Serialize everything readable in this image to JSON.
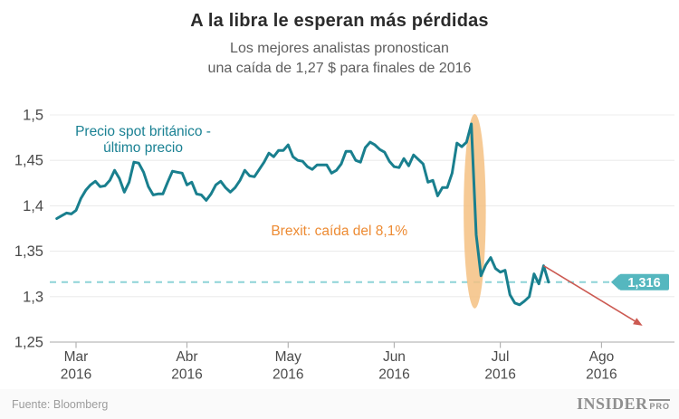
{
  "header": {
    "title": "A la libra le esperan más pérdidas",
    "subtitle_line1": "Los mejores analistas pronostican",
    "subtitle_line2": "una caída de 1,27 $ para finales de 2016"
  },
  "chart_data": {
    "type": "line",
    "title": "A la libra le esperan más pérdidas",
    "series": [
      {
        "name": "Precio spot británico - último precio (GBP/USD)",
        "values": [
          1.386,
          1.389,
          1.392,
          1.391,
          1.395,
          1.408,
          1.417,
          1.423,
          1.427,
          1.421,
          1.422,
          1.428,
          1.439,
          1.43,
          1.415,
          1.426,
          1.448,
          1.447,
          1.437,
          1.421,
          1.412,
          1.413,
          1.413,
          1.426,
          1.438,
          1.437,
          1.436,
          1.423,
          1.426,
          1.413,
          1.412,
          1.406,
          1.413,
          1.423,
          1.427,
          1.42,
          1.415,
          1.42,
          1.428,
          1.439,
          1.433,
          1.432,
          1.44,
          1.448,
          1.458,
          1.454,
          1.461,
          1.461,
          1.467,
          1.454,
          1.45,
          1.449,
          1.443,
          1.44,
          1.445,
          1.445,
          1.445,
          1.436,
          1.439,
          1.446,
          1.46,
          1.46,
          1.45,
          1.448,
          1.464,
          1.47,
          1.467,
          1.462,
          1.459,
          1.449,
          1.443,
          1.442,
          1.452,
          1.444,
          1.456,
          1.451,
          1.446,
          1.426,
          1.428,
          1.411,
          1.42,
          1.42,
          1.436,
          1.469,
          1.465,
          1.47,
          1.49,
          1.368,
          1.323,
          1.335,
          1.343,
          1.331,
          1.327,
          1.329,
          1.302,
          1.293,
          1.291,
          1.295,
          1.3,
          1.325,
          1.314,
          1.334,
          1.316
        ]
      }
    ],
    "x_axis": {
      "ticks": [
        {
          "month": "Mar",
          "year": "2016",
          "index": 4
        },
        {
          "month": "Abr",
          "year": "2016",
          "index": 27
        },
        {
          "month": "May",
          "year": "2016",
          "index": 48
        },
        {
          "month": "Jun",
          "year": "2016",
          "index": 70
        },
        {
          "month": "Jul",
          "year": "2016",
          "index": 92
        },
        {
          "month": "Ago",
          "year": "2016",
          "index": 113
        }
      ],
      "domain_indices": [
        0,
        128
      ]
    },
    "y_axis": {
      "ticks": [
        {
          "label": "1,5",
          "value": 1.5
        },
        {
          "label": "1,45",
          "value": 1.45
        },
        {
          "label": "1,4",
          "value": 1.4
        },
        {
          "label": "1,35",
          "value": 1.35
        },
        {
          "label": "1,3",
          "value": 1.3
        },
        {
          "label": "1,25",
          "value": 1.25
        }
      ],
      "range": [
        1.25,
        1.5
      ]
    },
    "grid": true,
    "line_color": "#197f8e",
    "annotations": {
      "series_label": {
        "lines": [
          "Precio spot británico -",
          "último precio"
        ],
        "color": "#1a8193",
        "index": 17.9,
        "value": 1.477
      },
      "brexit_label": {
        "text": "Brexit: caída del 8,1%",
        "color": "#ed8b33",
        "index": 58.6,
        "value": 1.3675
      },
      "highlight_ellipse": {
        "index": 86.7,
        "value_top": 1.501,
        "value_bottom": 1.287,
        "width_days": 4.6,
        "color": "#f4c183",
        "opacity": 0.85
      },
      "last_price": {
        "value": 1.316,
        "label": "1,316",
        "line_color": "#8ed3d7",
        "chip_color": "#55b7bf",
        "text_color": "#ffffff"
      },
      "forecast_arrow": {
        "from_index": 101,
        "from_value": 1.334,
        "to_index": 121.5,
        "to_value": 1.268,
        "color": "#cc5a52"
      }
    }
  },
  "footer": {
    "source": "Fuente: Bloomberg",
    "brand": "INSIDER",
    "brand_suffix": "PRO"
  }
}
